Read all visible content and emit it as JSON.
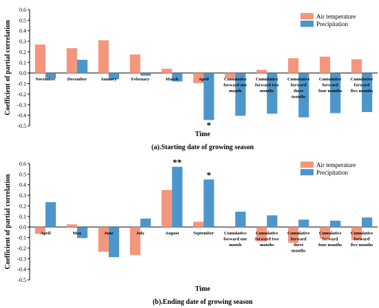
{
  "colors": {
    "air": "#F4967C",
    "precip": "#4D96CC"
  },
  "chart_data": [
    {
      "type": "bar",
      "title": "(a).Starting date of growing season",
      "xlabel": "Time",
      "ylabel": "Coefficient of partial correlation",
      "ylim": [
        -0.5,
        0.6
      ],
      "yticks": [
        "0.6",
        "0.5",
        "0.4",
        "0.3",
        "0.2",
        "0.1",
        "0.0",
        "-0.1",
        "-0.2",
        "-0.3",
        "-0.4",
        "-0.5"
      ],
      "legend": "top-right",
      "categories": [
        [
          "November"
        ],
        [
          "December"
        ],
        [
          "January"
        ],
        [
          "February"
        ],
        [
          "March"
        ],
        [
          "April"
        ],
        [
          "Cumulative",
          "forward one",
          "month"
        ],
        [
          "Cumulative",
          "forward two",
          "months"
        ],
        [
          "Cumulative",
          "forward",
          "three",
          "months"
        ],
        [
          "Cumulative",
          "forward",
          "four months"
        ],
        [
          "Cumulative",
          "forward",
          "five months"
        ]
      ],
      "series": [
        {
          "name": "Air temperature",
          "values": [
            0.27,
            0.235,
            0.31,
            0.175,
            0.04,
            -0.095,
            -0.05,
            0.03,
            0.14,
            0.155,
            0.13
          ]
        },
        {
          "name": "Precipitation",
          "values": [
            -0.05,
            0.125,
            -0.06,
            -0.025,
            -0.08,
            -0.445,
            -0.405,
            -0.385,
            -0.42,
            -0.38,
            -0.37
          ]
        }
      ],
      "annotations": [
        {
          "text": "*",
          "series": 1,
          "index": 5
        }
      ]
    },
    {
      "type": "bar",
      "title": "(b).Ending date of growing season",
      "xlabel": "Time",
      "ylabel": "Coefficient of partial correlation",
      "ylim": [
        -0.5,
        0.6
      ],
      "yticks": [
        "0.6",
        "0.5",
        "0.4",
        "0.3",
        "0.2",
        "0.1",
        "0.0",
        "-0.1",
        "-0.2",
        "-0.3",
        "-0.4",
        "-0.5"
      ],
      "legend": "top-right",
      "categories": [
        [
          "April"
        ],
        [
          "May"
        ],
        [
          "June"
        ],
        [
          "July"
        ],
        [
          "August"
        ],
        [
          "September"
        ],
        [
          "Cumulative",
          "forward one",
          "month"
        ],
        [
          "Cumulative",
          "forward two",
          "months"
        ],
        [
          "Cumulative",
          "forward",
          "three",
          "months"
        ],
        [
          "Cumulative",
          "forward",
          "four months"
        ],
        [
          "Cumulative",
          "forward",
          "five months"
        ]
      ],
      "series": [
        {
          "name": "Air temperature",
          "values": [
            -0.065,
            0.025,
            -0.235,
            -0.265,
            0.35,
            0.05,
            -0.01,
            -0.135,
            -0.15,
            -0.11,
            -0.125
          ]
        },
        {
          "name": "Precipitation",
          "values": [
            0.235,
            -0.105,
            -0.285,
            0.08,
            0.57,
            0.45,
            0.145,
            0.11,
            0.07,
            0.06,
            0.09
          ]
        }
      ],
      "annotations": [
        {
          "text": "**",
          "series": 1,
          "index": 4
        },
        {
          "text": "*",
          "series": 1,
          "index": 5
        }
      ]
    }
  ]
}
